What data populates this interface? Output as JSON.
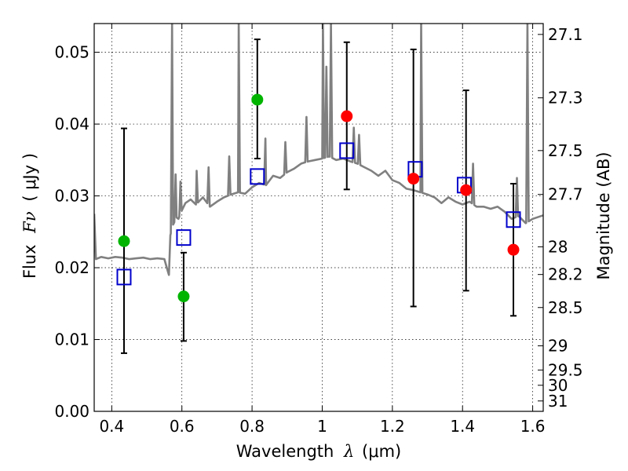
{
  "chart_data": {
    "type": "scatter",
    "xlabel": "Wavelength",
    "xlabel_symbol": "λ",
    "xlabel_unit": "(μm)",
    "ylabel": "Flux",
    "ylabel_symbol": "Fν",
    "ylabel_unit": "( μJy )",
    "y2label": "Magnitude (AB)",
    "xlim": [
      0.35,
      1.63
    ],
    "ylim": [
      0.0,
      0.054
    ],
    "grid": true,
    "x_ticks": [
      "0.4",
      "0.6",
      "0.8",
      "1",
      "1.2",
      "1.4",
      "1.6"
    ],
    "x_tick_values": [
      0.4,
      0.6,
      0.8,
      1.0,
      1.2,
      1.4,
      1.6
    ],
    "y_ticks": [
      "0.00",
      "0.01",
      "0.02",
      "0.03",
      "0.04",
      "0.05"
    ],
    "y_tick_values": [
      0.0,
      0.01,
      0.02,
      0.03,
      0.04,
      0.05
    ],
    "y2_ticks": [
      "27.1",
      "27.3",
      "27.5",
      "27.7",
      "28",
      "28.2",
      "28.5",
      "29",
      "29.5",
      "30",
      "31"
    ],
    "y2_tick_values": [
      27.1,
      27.3,
      27.5,
      27.7,
      28.0,
      28.2,
      28.5,
      29.0,
      29.5,
      30.0,
      31.0
    ],
    "colors": {
      "model_spectrum": "#808080",
      "model_photometry": "#0000cc",
      "green_points": "#00b400",
      "red_points": "#ff0000",
      "errorbars": "#000000"
    },
    "model_spectrum": {
      "x": [
        0.35,
        0.355,
        0.37,
        0.39,
        0.41,
        0.43,
        0.45,
        0.47,
        0.49,
        0.51,
        0.53,
        0.55,
        0.56,
        0.563,
        0.567,
        0.575,
        0.585,
        0.59,
        0.6,
        0.61,
        0.625,
        0.64,
        0.66,
        0.68,
        0.7,
        0.72,
        0.74,
        0.76,
        0.78,
        0.8,
        0.82,
        0.84,
        0.86,
        0.88,
        0.9,
        0.92,
        0.94,
        0.96,
        0.98,
        1.0,
        1.02,
        1.04,
        1.06,
        1.08,
        1.1,
        1.12,
        1.14,
        1.16,
        1.18,
        1.2,
        1.22,
        1.24,
        1.26,
        1.28,
        1.3,
        1.32,
        1.34,
        1.36,
        1.38,
        1.4,
        1.42,
        1.44,
        1.46,
        1.48,
        1.5,
        1.52,
        1.54,
        1.56,
        1.58,
        1.6,
        1.63
      ],
      "flux": [
        0.0275,
        0.0212,
        0.0215,
        0.0213,
        0.0215,
        0.0214,
        0.0212,
        0.0213,
        0.0214,
        0.0212,
        0.0213,
        0.0212,
        0.0195,
        0.019,
        0.0245,
        0.026,
        0.027,
        0.0268,
        0.028,
        0.029,
        0.0295,
        0.0288,
        0.0298,
        0.0285,
        0.0292,
        0.0298,
        0.0302,
        0.0305,
        0.0303,
        0.0312,
        0.0318,
        0.0315,
        0.0328,
        0.0325,
        0.0333,
        0.0338,
        0.0345,
        0.0348,
        0.035,
        0.0352,
        0.0355,
        0.035,
        0.0352,
        0.0348,
        0.0345,
        0.034,
        0.0335,
        0.0328,
        0.0335,
        0.0322,
        0.0318,
        0.031,
        0.0308,
        0.0305,
        0.0302,
        0.0298,
        0.029,
        0.0298,
        0.0292,
        0.0288,
        0.0292,
        0.0285,
        0.0285,
        0.0282,
        0.0285,
        0.0278,
        0.0268,
        0.0272,
        0.0262,
        0.0268,
        0.0273
      ]
    },
    "emission_lines": [
      {
        "x": 0.572,
        "peak": 0.054
      },
      {
        "x": 0.582,
        "peak": 0.033
      },
      {
        "x": 0.596,
        "peak": 0.032
      },
      {
        "x": 0.642,
        "peak": 0.0335
      },
      {
        "x": 0.676,
        "peak": 0.034
      },
      {
        "x": 0.735,
        "peak": 0.0355
      },
      {
        "x": 0.762,
        "peak": 0.054
      },
      {
        "x": 0.838,
        "peak": 0.038
      },
      {
        "x": 0.895,
        "peak": 0.0375
      },
      {
        "x": 0.955,
        "peak": 0.041
      },
      {
        "x": 1.002,
        "peak": 0.054
      },
      {
        "x": 1.012,
        "peak": 0.048
      },
      {
        "x": 1.025,
        "peak": 0.054
      },
      {
        "x": 1.09,
        "peak": 0.0395
      },
      {
        "x": 1.105,
        "peak": 0.0385
      },
      {
        "x": 1.282,
        "peak": 0.054
      },
      {
        "x": 1.43,
        "peak": 0.0345
      },
      {
        "x": 1.555,
        "peak": 0.0325
      },
      {
        "x": 1.585,
        "peak": 0.054
      }
    ],
    "model_photometry": {
      "x": [
        0.435,
        0.605,
        0.815,
        1.07,
        1.265,
        1.405,
        1.545
      ],
      "flux": [
        0.0187,
        0.0242,
        0.0327,
        0.0363,
        0.0337,
        0.0315,
        0.0267
      ]
    },
    "green_points": {
      "x": [
        0.435,
        0.605,
        0.815
      ],
      "flux": [
        0.0237,
        0.016,
        0.0434
      ],
      "err_low": [
        0.0081,
        0.0098,
        0.0352
      ],
      "err_high": [
        0.0394,
        0.0221,
        0.0518
      ]
    },
    "red_points": {
      "x": [
        1.07,
        1.26,
        1.41,
        1.545
      ],
      "flux": [
        0.0411,
        0.0324,
        0.0308,
        0.0225
      ],
      "err_low": [
        0.0309,
        0.0146,
        0.0168,
        0.0133
      ],
      "err_high": [
        0.0514,
        0.0504,
        0.0447,
        0.0317
      ]
    }
  }
}
